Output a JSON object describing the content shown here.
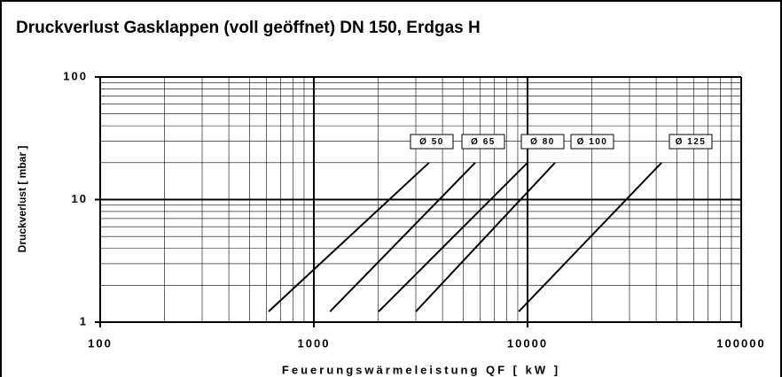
{
  "chart_data": {
    "type": "line",
    "title": "Druckverlust Gasklappen (voll geöffnet) DN 150, Erdgas H",
    "x_label": "Feuerungswärmeleistung QF [ kW ]",
    "y_label": "Druckverlust [ mbar ]",
    "log_x": true,
    "log_y": true,
    "grid": true,
    "xlim": [
      100,
      100000
    ],
    "xticks": [
      100,
      1000,
      10000,
      100000
    ],
    "ylim": [
      1,
      100
    ],
    "yticks": [
      1,
      10,
      100
    ],
    "series": [
      {
        "name": "Ø 50",
        "color": "#000000",
        "x": [
          614,
          3460
        ],
        "values": [
          1.22,
          20
        ]
      },
      {
        "name": "Ø 65",
        "color": "#000000",
        "x": [
          1190,
          5690
        ],
        "values": [
          1.22,
          20
        ]
      },
      {
        "name": "Ø 80",
        "color": "#000000",
        "x": [
          2010,
          10000
        ],
        "values": [
          1.22,
          20
        ]
      },
      {
        "name": "Ø 100",
        "color": "#000000",
        "x": [
          3000,
          13450
        ],
        "values": [
          1.22,
          20
        ]
      },
      {
        "name": "Ø 125",
        "color": "#000000",
        "x": [
          9100,
          42400
        ],
        "values": [
          1.22,
          20
        ]
      }
    ]
  }
}
